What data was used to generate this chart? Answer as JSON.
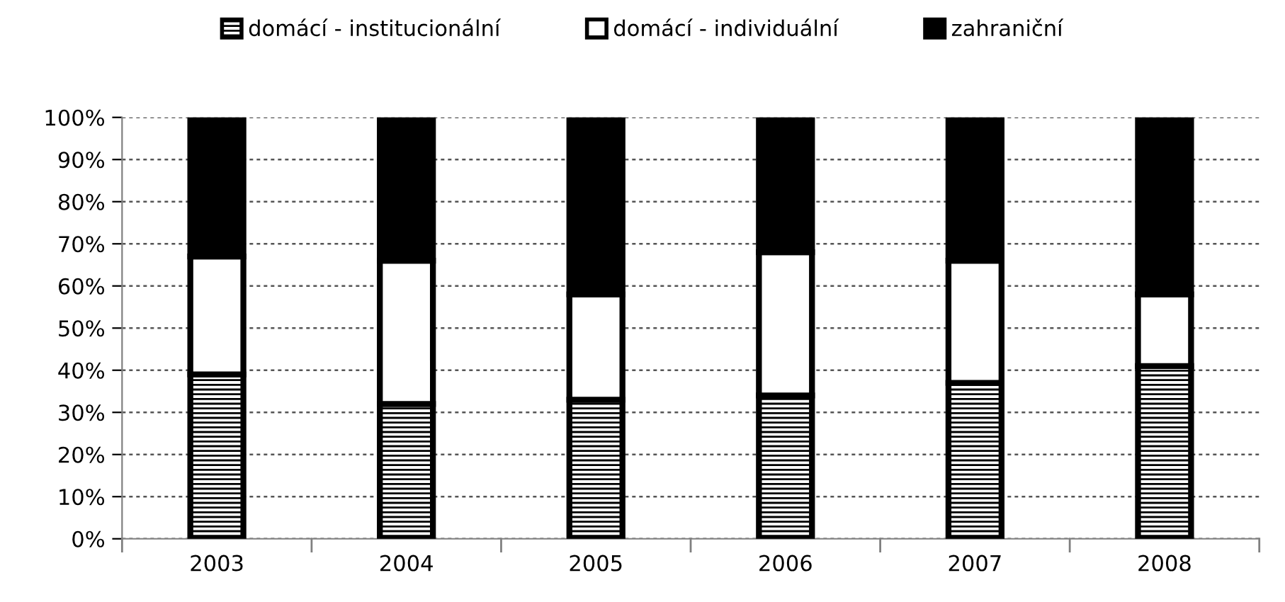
{
  "chart_data": {
    "type": "bar",
    "stacked": true,
    "categories": [
      "2003",
      "2004",
      "2005",
      "2006",
      "2007",
      "2008"
    ],
    "series": [
      {
        "name": "domácí - institucionální",
        "color": "#000000",
        "values": [
          39,
          32,
          33,
          34,
          37,
          41
        ]
      },
      {
        "name": "domácí - individuální",
        "color": "#ffffff",
        "values": [
          28,
          34,
          25,
          34,
          29,
          17
        ]
      },
      {
        "name": "zahraniční",
        "color": "#000000",
        "values": [
          33,
          34,
          42,
          32,
          34,
          42
        ]
      }
    ],
    "ylim": [
      0,
      100
    ],
    "yticks": [
      {
        "value": 0,
        "label": "0%"
      },
      {
        "value": 10,
        "label": "10%"
      },
      {
        "value": 20,
        "label": "20%"
      },
      {
        "value": 30,
        "label": "30%"
      },
      {
        "value": 40,
        "label": "40%"
      },
      {
        "value": 50,
        "label": "50%"
      },
      {
        "value": 60,
        "label": "60%"
      },
      {
        "value": 70,
        "label": "70%"
      },
      {
        "value": 80,
        "label": "80%"
      },
      {
        "value": 90,
        "label": "90%"
      },
      {
        "value": 100,
        "label": "100%"
      }
    ],
    "grid": "y",
    "legend": "top"
  }
}
